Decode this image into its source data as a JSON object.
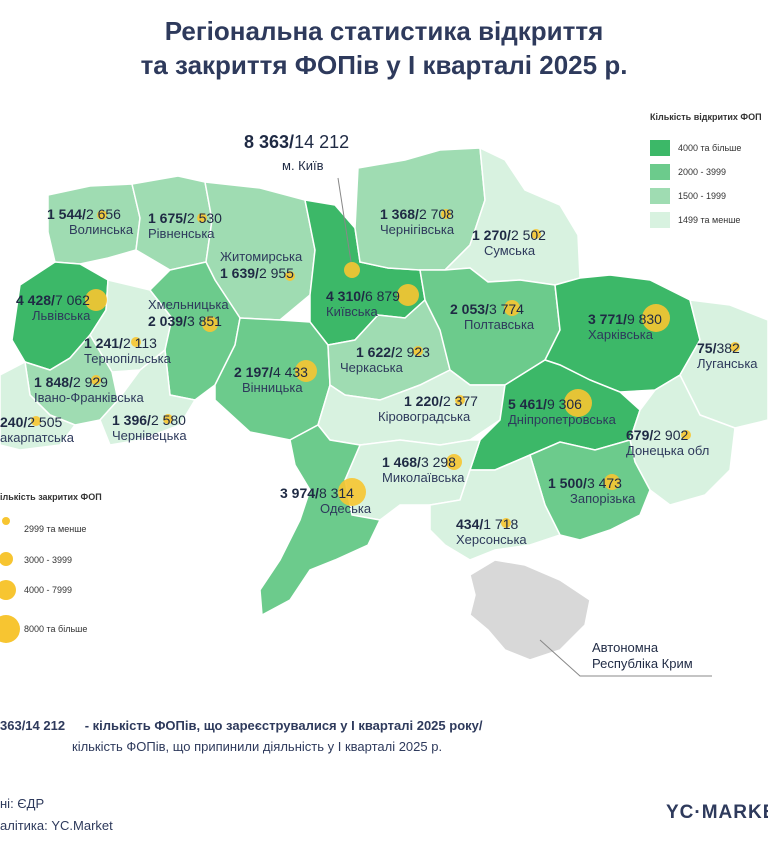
{
  "title": {
    "line1": "Регіональна статистика відкриття",
    "line2": "та закриття ФОПів у І кварталі 2025 р."
  },
  "colors": {
    "c4000": "#3cb868",
    "c2000": "#6ccb8c",
    "c1500": "#9fdcb2",
    "c1499": "#d8f2e0",
    "bubble": "#f7c531",
    "crimea": "#d8d8d8"
  },
  "legend_open": {
    "title": "Кількість відкритих ФОП",
    "items": [
      {
        "label": "4000 та більше",
        "color": "#3cb868"
      },
      {
        "label": "2000 - 3999",
        "color": "#6ccb8c"
      },
      {
        "label": "1500 - 1999",
        "color": "#9fdcb2"
      },
      {
        "label": "1499 та менше",
        "color": "#d8f2e0"
      }
    ]
  },
  "legend_closed": {
    "title": "ількість закритих ФОП",
    "items": [
      {
        "label": "2999 та менше"
      },
      {
        "label": "3000 - 3999"
      },
      {
        "label": "4000 - 7999"
      },
      {
        "label": "8000 та більше"
      }
    ]
  },
  "kyiv_city": {
    "open": "8 363",
    "closed": "14 212",
    "name": "м. Київ"
  },
  "regions": [
    {
      "id": "volynska",
      "name": "Волинська",
      "open": "1 544",
      "closed": "2 656"
    },
    {
      "id": "rivnenska",
      "name": "Рівненська",
      "open": "1 675",
      "closed": "2 530"
    },
    {
      "id": "zhytomyrska",
      "name": "Житомирська",
      "open": "1 639",
      "closed": "2 955"
    },
    {
      "id": "chernihivska",
      "name": "Чернігівська",
      "open": "1 368",
      "closed": "2 708"
    },
    {
      "id": "sumska",
      "name": "Сумська",
      "open": "1 270",
      "closed": "2 502"
    },
    {
      "id": "lvivska",
      "name": "Львівська",
      "open": "4 428",
      "closed": "7 062"
    },
    {
      "id": "khmelnytska",
      "name": "Хмельницька",
      "open": "2 039",
      "closed": "3 851"
    },
    {
      "id": "kyivska",
      "name": "Київська",
      "open": "4 310",
      "closed": "6 879"
    },
    {
      "id": "poltavska",
      "name": "Полтавська",
      "open": "2 053",
      "closed": "3 774"
    },
    {
      "id": "kharkivska",
      "name": "Харківська",
      "open": "3 771",
      "closed": "9 830"
    },
    {
      "id": "ternopilska",
      "name": "Тернопільська",
      "open": "1 241",
      "closed": "2 113"
    },
    {
      "id": "luhanska",
      "name": "Луганська",
      "open": "75",
      "closed": "382"
    },
    {
      "id": "ivanofrankivska",
      "name": "Івано-Франківська",
      "open": "1 848",
      "closed": "2 929"
    },
    {
      "id": "cherkaska",
      "name": "Черкаська",
      "open": "1 622",
      "closed": "2 923"
    },
    {
      "id": "vinnytska",
      "name": "Вінницька",
      "open": "2 197",
      "closed": "4 433"
    },
    {
      "id": "zakarpatska",
      "name": "акарпатська",
      "open": "240",
      "closed": "2 505"
    },
    {
      "id": "chernivetska",
      "name": "Чернівецька",
      "open": "1 396",
      "closed": "2 580"
    },
    {
      "id": "kirovohradska",
      "name": "Кіровоградська",
      "open": "1 220",
      "closed": "2 377"
    },
    {
      "id": "dnipropetrovska",
      "name": "Дніпропетровська",
      "open": "5 461",
      "closed": "9 306"
    },
    {
      "id": "donetska",
      "name": "Донецька обл",
      "open": "679",
      "closed": "2 902"
    },
    {
      "id": "mykolaivska",
      "name": "Миколаївська",
      "open": "1 468",
      "closed": "3 298"
    },
    {
      "id": "odeska",
      "name": "Одеська",
      "open": "3 974",
      "closed": "8 314"
    },
    {
      "id": "zaporizka",
      "name": "Запорізька",
      "open": "1 500",
      "closed": "3 473"
    },
    {
      "id": "khersonska",
      "name": "Херсонська",
      "open": "434",
      "closed": "1 718"
    }
  ],
  "crimea": {
    "line1": "Автономна",
    "line2": "Республіка Крим"
  },
  "note": {
    "example": "363/14 212",
    "line1": "- кількість ФОПів, що зареєструвалися у І кварталі 2025 року/",
    "line2": "кількість ФОПів, що припинили діяльність у І кварталі 2025 р."
  },
  "footer": {
    "source": "ні: ЄДР",
    "analytics": "алітика: YC.Market"
  },
  "logo": "YC·MARKET"
}
